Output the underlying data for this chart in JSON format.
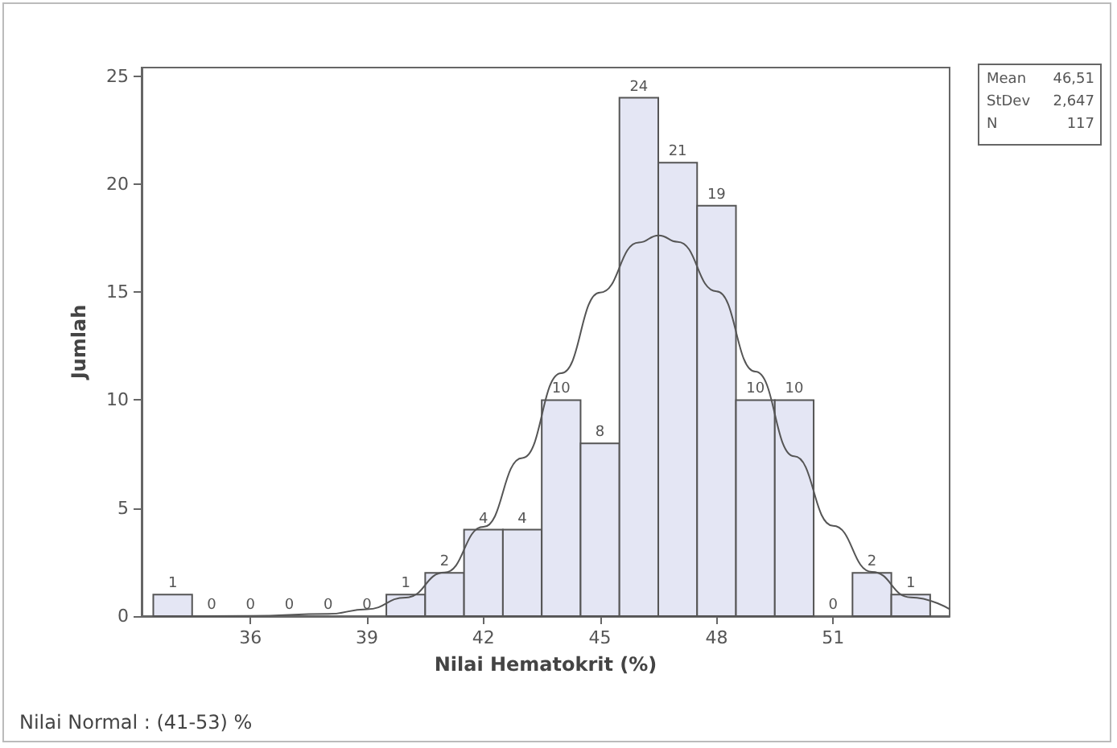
{
  "chart_data": {
    "type": "histogram",
    "xlabel": "Nilai Hematokrit (%)",
    "ylabel": "Jumlah",
    "bins": [
      33.5,
      34.5,
      35.5,
      36.5,
      37.5,
      38.5,
      39.5,
      40.5,
      41.5,
      42.5,
      43.5,
      44.5,
      45.5,
      46.5,
      47.5,
      48.5,
      49.5,
      50.5,
      51.5,
      52.5,
      53.5
    ],
    "values": [
      1,
      0,
      0,
      0,
      0,
      0,
      1,
      2,
      4,
      4,
      10,
      8,
      24,
      21,
      19,
      10,
      10,
      0,
      2,
      1
    ],
    "color": "#e4e6f4",
    "value_labels": [
      "1",
      "0",
      "0",
      "0",
      "0",
      "0",
      "1",
      "2",
      "4",
      "4",
      "10",
      "8",
      "24",
      "21",
      "19",
      "10",
      "10",
      "0",
      "2",
      "1"
    ],
    "series": [
      {
        "type": "line",
        "color": "#555555",
        "x": [
          34,
          36,
          38,
          39,
          40,
          41,
          42,
          43,
          44,
          45,
          46,
          46.51,
          47,
          48,
          49,
          50,
          51,
          52,
          53,
          54
        ],
        "values": [
          0,
          0.01,
          0.1,
          0.32,
          0.86,
          2.02,
          4.13,
          7.32,
          11.25,
          14.98,
          17.3,
          17.63,
          17.33,
          15.04,
          11.32,
          7.4,
          4.18,
          2.05,
          0.87,
          0.32
        ]
      }
    ],
    "xlim": [
      33.2,
      54
    ],
    "xticks": [
      36,
      39,
      42,
      45,
      48,
      51
    ],
    "ylim": [
      0,
      25.4
    ],
    "yticks": [
      0,
      5,
      10,
      15,
      20,
      25
    ],
    "grid": false,
    "annotations": [
      "Mean 46,51",
      "StDev 2,647",
      "N 117",
      "Nilai Normal : (41-53) %"
    ]
  }
}
